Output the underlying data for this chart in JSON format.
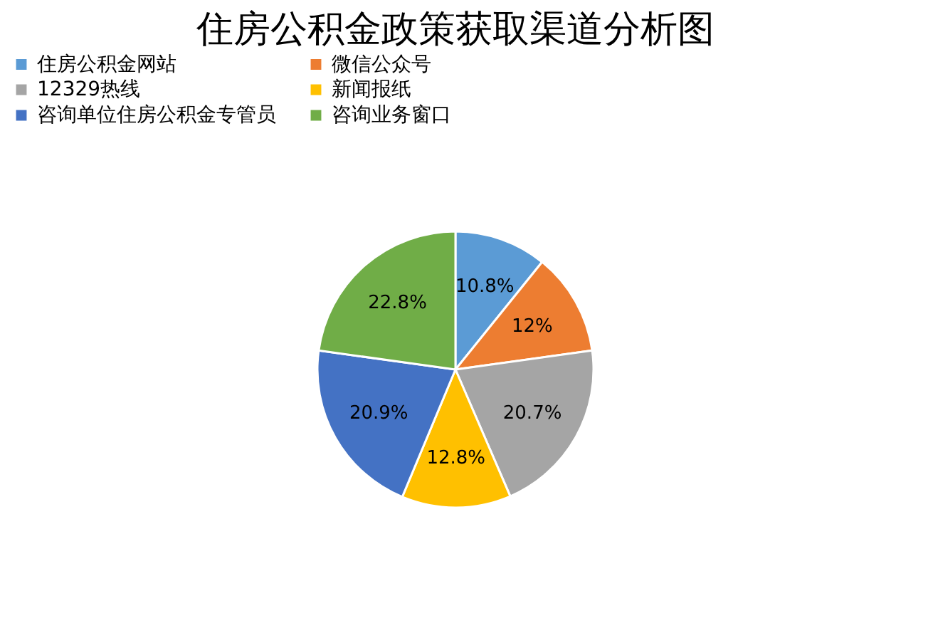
{
  "chart_data": {
    "type": "pie",
    "title": "住房公积金政策获取渠道分析图",
    "categories": [
      "住房公积金网站",
      "微信公众号",
      "12329热线",
      "新闻报纸",
      "咨询单位住房公积金专管员",
      "咨询业务窗口"
    ],
    "values": [
      10.8,
      12,
      20.7,
      12.8,
      20.9,
      22.8
    ],
    "colors": [
      "#5b9bd5",
      "#ed7d31",
      "#a5a5a5",
      "#ffc000",
      "#4472c4",
      "#70ad47"
    ],
    "value_labels": [
      "10.8%",
      "12%",
      "20.7%",
      "12.8%",
      "20.9%",
      "22.8%"
    ],
    "legend": "top"
  }
}
